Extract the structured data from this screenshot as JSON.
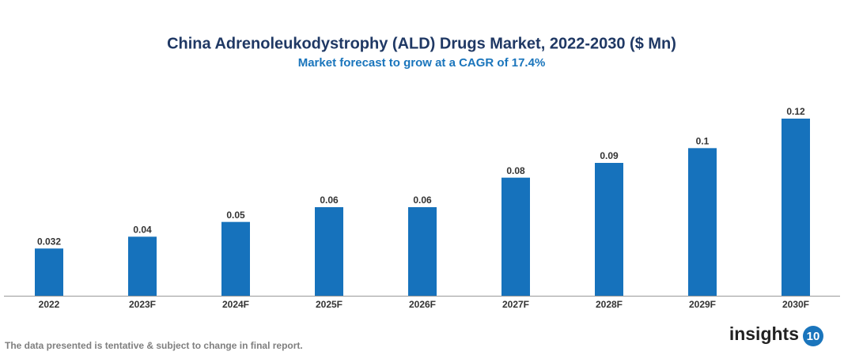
{
  "chart_data": {
    "type": "bar",
    "title": "China Adrenoleukodystrophy (ALD) Drugs Market, 2022-2030 ($ Mn)",
    "subtitle": "Market forecast to grow at a CAGR of 17.4%",
    "categories": [
      "2022",
      "2023F",
      "2024F",
      "2025F",
      "2026F",
      "2027F",
      "2028F",
      "2029F",
      "2030F"
    ],
    "values": [
      0.032,
      0.04,
      0.05,
      0.06,
      0.06,
      0.08,
      0.09,
      0.1,
      0.12
    ],
    "color": "#1672bc"
  },
  "footnote": "The data presented is tentative & subject to change in final report.",
  "logo": {
    "text": "insights",
    "badge": "10"
  }
}
